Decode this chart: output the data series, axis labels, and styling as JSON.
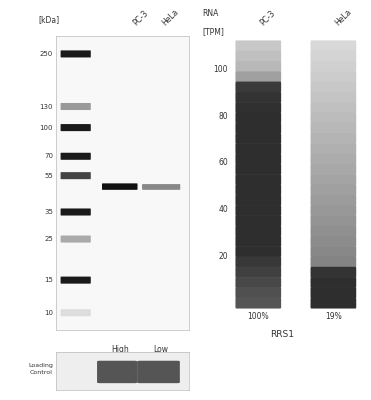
{
  "background_color": "#ffffff",
  "wb_title": "[kDa]",
  "wb_sample_labels_top": [
    "PC-3",
    "HeLa"
  ],
  "wb_sample_labels_bottom": [
    "High",
    "Low"
  ],
  "ladder_kda": [
    250,
    130,
    100,
    70,
    55,
    35,
    25,
    15,
    10
  ],
  "ladder_colors": [
    "#1a1a1a",
    "#999999",
    "#1a1a1a",
    "#1a1a1a",
    "#444444",
    "#1a1a1a",
    "#aaaaaa",
    "#1a1a1a",
    "#dddddd"
  ],
  "band_pc3_color": "#111111",
  "band_hela_color": "#888888",
  "band_kda": 48,
  "rna_title_line1": "RNA",
  "rna_title_line2": "[TPM]",
  "rna_yticks": [
    20,
    40,
    60,
    80,
    100
  ],
  "rna_pc3_label": "100%",
  "rna_hela_label": "19%",
  "rna_gene": "RRS1",
  "rna_pc3_col_label": "PC-3",
  "rna_hela_col_label": "HeLa",
  "n_bars": 26,
  "pc3_colors": [
    "#c8c8c8",
    "#c0c0c0",
    "#b8b8b8",
    "#a0a0a0",
    "#3a3a3a",
    "#333333",
    "#303030",
    "#2e2e2e",
    "#2e2e2e",
    "#2e2e2e",
    "#2e2e2e",
    "#2e2e2e",
    "#2e2e2e",
    "#2e2e2e",
    "#2e2e2e",
    "#2e2e2e",
    "#2e2e2e",
    "#2e2e2e",
    "#2e2e2e",
    "#2e2e2e",
    "#2e2e2e",
    "#383838",
    "#404040",
    "#484848",
    "#505050",
    "#555555"
  ],
  "hela_colors": [
    "#d8d8d8",
    "#d4d4d4",
    "#d0d0d0",
    "#cccccc",
    "#c8c8c8",
    "#c4c4c4",
    "#c0c0c0",
    "#bcbcbc",
    "#b8b8b8",
    "#b4b4b4",
    "#b0b0b0",
    "#acacac",
    "#a8a8a8",
    "#a4a4a4",
    "#a0a0a0",
    "#9c9c9c",
    "#989898",
    "#949494",
    "#909090",
    "#8c8c8c",
    "#888888",
    "#848484",
    "#333333",
    "#2e2e2e",
    "#2e2e2e",
    "#2e2e2e"
  ],
  "loading_control_color": "#555555",
  "lc_bg_color": "#eeeeee",
  "wb_bg_color": "#f8f8f8"
}
